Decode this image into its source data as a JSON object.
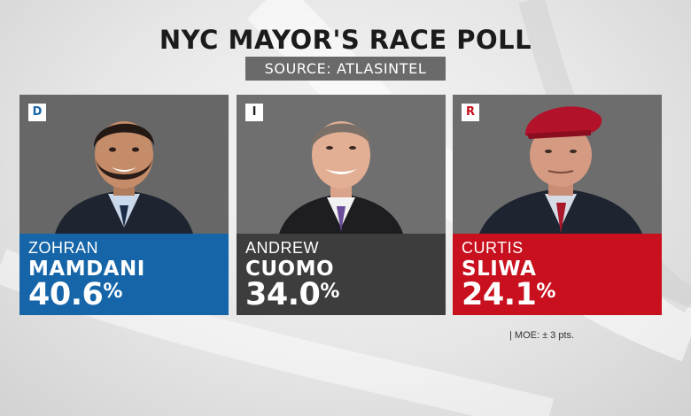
{
  "header": {
    "title": "NYC MAYOR'S RACE POLL",
    "source": "SOURCE: ATLASINTEL"
  },
  "candidates": [
    {
      "party_letter": "D",
      "first_name": "ZOHRAN",
      "last_name": "MAMDANI",
      "percent": "40.6",
      "percent_sign": "%",
      "panel_color": "#1565a8",
      "party_color": "#1565a8"
    },
    {
      "party_letter": "I",
      "first_name": "ANDREW",
      "last_name": "CUOMO",
      "percent": "34.0",
      "percent_sign": "%",
      "panel_color": "#3d3d3d",
      "party_color": "#222222"
    },
    {
      "party_letter": "R",
      "first_name": "CURTIS",
      "last_name": "SLIWA",
      "percent": "24.1",
      "percent_sign": "%",
      "panel_color": "#c8101e",
      "party_color": "#c8101e"
    }
  ],
  "footer": {
    "moe": "| MOE: ± 3 pts."
  }
}
